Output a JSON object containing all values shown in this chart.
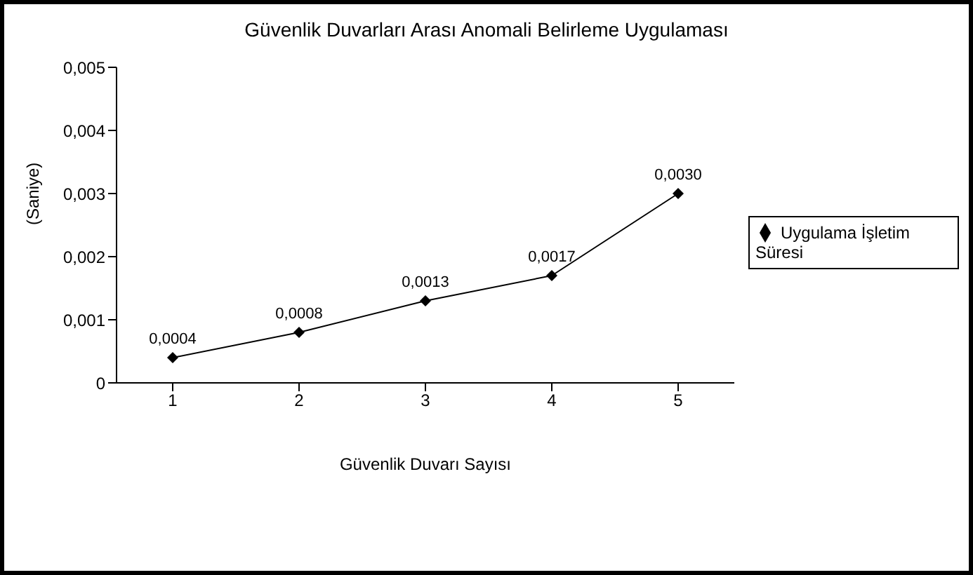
{
  "chart_data": {
    "type": "line",
    "title": "Güvenlik Duvarları Arası Anomali Belirleme Uygulaması",
    "xlabel": "Güvenlik Duvarı Sayısı",
    "ylabel": "(Saniye)",
    "categories": [
      "1",
      "2",
      "3",
      "4",
      "5"
    ],
    "series": [
      {
        "name": "Uygulama İşletim Süresi",
        "color": "#000000",
        "values": [
          0.0004,
          0.0008,
          0.0013,
          0.0017,
          0.003
        ],
        "value_labels": [
          "0,0004",
          "0,0008",
          "0,0013",
          "0,0017",
          "0,0030"
        ]
      }
    ],
    "ylim": [
      0,
      0.005
    ],
    "yticks": [
      0,
      {
        "value": 0.001,
        "label": "0,001"
      },
      {
        "value": 0.002,
        "label": "0,002"
      },
      {
        "value": 0.003,
        "label": "0,003"
      },
      {
        "value": 0.004,
        "label": "0,004"
      },
      {
        "value": 0.005,
        "label": "0,005"
      }
    ],
    "grid": false,
    "legend": "right",
    "marker": "diamond",
    "line_style": "solid"
  }
}
